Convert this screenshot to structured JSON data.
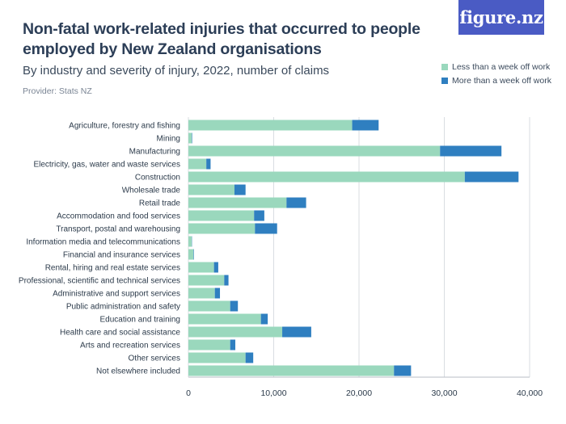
{
  "header": {
    "title": "Non-fatal work-related injuries that occurred to people employed by New Zealand organisations",
    "subtitle": "By industry and severity of injury, 2022, number of claims",
    "provider": "Provider: Stats NZ",
    "logo_text": "figure.nz"
  },
  "colors": {
    "less": "#9ad8bd",
    "more": "#2f7fc0",
    "logo_bg": "#4a5bc4"
  },
  "chart_data": {
    "type": "bar",
    "orientation": "horizontal",
    "stacked": true,
    "categories": [
      "Agriculture, forestry and fishing",
      "Mining",
      "Manufacturing",
      "Electricity, gas, water and waste services",
      "Construction",
      "Wholesale trade",
      "Retail trade",
      "Accommodation and food services",
      "Transport, postal and warehousing",
      "Information media and telecommunications",
      "Financial and insurance services",
      "Rental, hiring and real estate services",
      "Professional, scientific and technical services",
      "Administrative and support services",
      "Public administration and safety",
      "Education and training",
      "Health care and social assistance",
      "Arts and recreation services",
      "Other services",
      "Not elsewhere included"
    ],
    "series": [
      {
        "name": "Less than a week off work",
        "values": [
          19200,
          400,
          29500,
          2100,
          32400,
          5400,
          11500,
          7700,
          7800,
          400,
          600,
          3000,
          4200,
          3100,
          4900,
          8500,
          11000,
          4900,
          6700,
          24100
        ]
      },
      {
        "name": "More than a week off work",
        "values": [
          3100,
          50,
          7200,
          500,
          6300,
          1300,
          2300,
          1200,
          2600,
          30,
          50,
          500,
          500,
          600,
          900,
          800,
          3400,
          600,
          900,
          2000
        ]
      }
    ],
    "xlim": [
      0,
      40000
    ],
    "xticks": [
      0,
      10000,
      20000,
      30000,
      40000
    ],
    "xtick_labels": [
      "0",
      "10,000",
      "20,000",
      "30,000",
      "40,000"
    ],
    "grid": true,
    "legend_position": "top-right"
  }
}
